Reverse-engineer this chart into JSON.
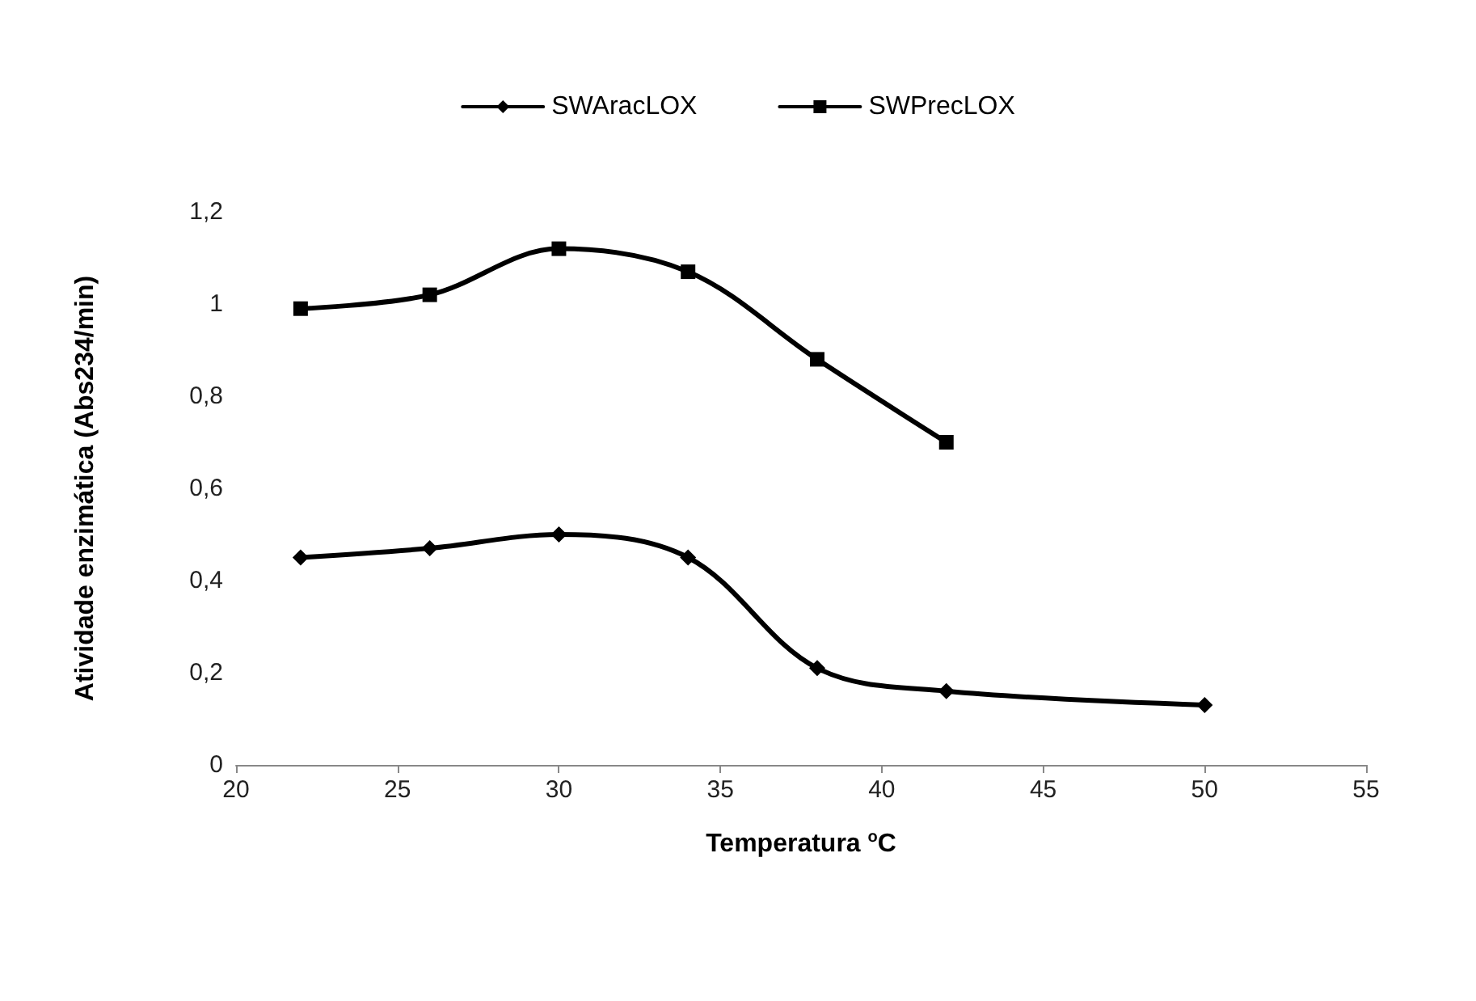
{
  "chart_data": {
    "type": "line",
    "xlabel": "Temperatura $^{o}$C",
    "ylabel": "Atividade enzimática (Abs234/min)",
    "xlim": [
      20,
      55
    ],
    "xticks": [
      20,
      25,
      30,
      35,
      40,
      45,
      50,
      55
    ],
    "ylim": [
      0,
      1.2
    ],
    "yticks": [
      0,
      {
        "value": 0.2,
        "label": "0,2"
      },
      {
        "value": 0.4,
        "label": "0,4"
      },
      {
        "value": 0.6,
        "label": "0,6"
      },
      {
        "value": 0.8,
        "label": "0,8"
      },
      1,
      {
        "value": 1.2,
        "label": "1,2"
      }
    ],
    "grid": false,
    "legend": "top",
    "line_style": "solid",
    "series": [
      {
        "name": "SWAracLOX",
        "color": "#000000",
        "marker": "diamond",
        "x": [
          22,
          26,
          30,
          34,
          38,
          42,
          50
        ],
        "values": [
          0.45,
          0.47,
          0.5,
          0.45,
          0.21,
          0.16,
          0.13
        ]
      },
      {
        "name": "SWPrecLOX",
        "color": "#000000",
        "marker": "square",
        "x": [
          22,
          26,
          30,
          34,
          38,
          42
        ],
        "values": [
          0.99,
          1.02,
          1.12,
          1.07,
          0.88,
          0.7
        ]
      }
    ]
  }
}
